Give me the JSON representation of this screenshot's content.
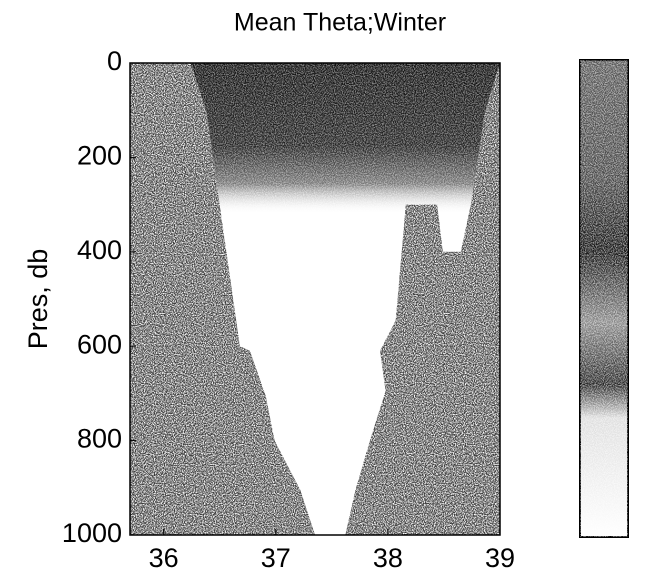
{
  "chart_data": {
    "type": "section",
    "title": "Mean Theta;Winter",
    "ylabel": "Pres, db",
    "xlim": [
      35.7,
      39.0
    ],
    "ylim": [
      0,
      1000
    ],
    "y_inverted": true,
    "xticks": [
      36,
      37,
      38,
      39
    ],
    "yticks": [
      0,
      200,
      400,
      600,
      800,
      1000
    ],
    "water": {
      "x": [
        36.24,
        36.38,
        36.68,
        36.77,
        36.91,
        36.99,
        37.22,
        37.35,
        37.62,
        37.71,
        37.84,
        37.98,
        37.93,
        38.07,
        38.16,
        38.44,
        38.49,
        38.65,
        38.74,
        38.87,
        39.0
      ],
      "y": [
        0,
        100,
        600,
        610,
        705,
        800,
        905,
        1000,
        1000,
        905,
        800,
        695,
        610,
        545,
        300,
        300,
        400,
        400,
        300,
        100,
        0
      ]
    },
    "colorbar": true
  }
}
